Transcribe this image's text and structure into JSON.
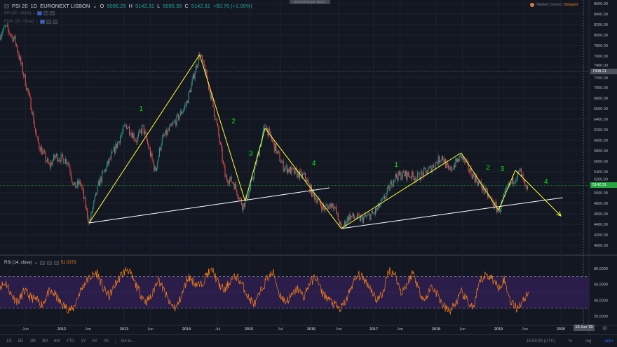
{
  "header": {
    "symbol": "PSI 20",
    "interval": "1D",
    "exchange": "EURONEXT LISBON",
    "open_label": "O",
    "open": "5096.26",
    "high_label": "H",
    "high": "5142.31",
    "low_label": "L",
    "low": "5095.35",
    "close_label": "C",
    "close": "5142.31",
    "change": "+50.76 (+1.00%)",
    "indicators": [
      "MA (50, close)",
      "EMA (20, close)"
    ]
  },
  "exit_fullscreen": "Exit Full Screen (ESC)",
  "market_status": {
    "text": "Market Closed",
    "delay": "Delayed"
  },
  "crosshair_price": "7308.21",
  "last_price": "5142.31",
  "rsi": {
    "label": "RSI (14, close)",
    "value": "51.0373"
  },
  "time_label": "10 Jun '20",
  "bottom_bar": {
    "ranges": [
      "1D",
      "5D",
      "1M",
      "3M",
      "6M",
      "YTD",
      "1Y",
      "5Y",
      "All"
    ],
    "goto": "Go to...",
    "clock": "15:03:09 (UTC)",
    "percent": "%",
    "log": "log",
    "auto": "auto"
  },
  "colors": {
    "bg": "#131722",
    "up": "#26a69a",
    "down": "#ef5350",
    "annotation": "#ffff33",
    "trend": "#ffffff",
    "wave_label": "#00e600",
    "rsi": "#f57f17",
    "rsi_band": "#2a1d4a"
  },
  "chart_data": {
    "type": "line",
    "title": "PSI 20 · 1D · EURONEXT LISBON",
    "price_ticks": [
      "8600.00",
      "8400.00",
      "8200.00",
      "8000.00",
      "7800.00",
      "7600.00",
      "7400.00",
      "7200.00",
      "7000.00",
      "6800.00",
      "6600.00",
      "6400.00",
      "6200.00",
      "6000.00",
      "5800.00",
      "5600.00",
      "5400.00",
      "5200.00",
      "5000.00",
      "4800.00",
      "4600.00",
      "4400.00",
      "4200.00",
      "4000.00"
    ],
    "ylim": [
      4000,
      8600
    ],
    "time_ticks": [
      {
        "label": "Jun",
        "t": 2011.42
      },
      {
        "label": "2012",
        "t": 2012
      },
      {
        "label": "Jun",
        "t": 2012.42
      },
      {
        "label": "2013",
        "t": 2013
      },
      {
        "label": "Jun",
        "t": 2013.42
      },
      {
        "label": "2014",
        "t": 2014
      },
      {
        "label": "Jul",
        "t": 2014.5
      },
      {
        "label": "2015",
        "t": 2015
      },
      {
        "label": "Jul",
        "t": 2015.5
      },
      {
        "label": "2016",
        "t": 2016
      },
      {
        "label": "Jun",
        "t": 2016.44
      },
      {
        "label": "2017",
        "t": 2017
      },
      {
        "label": "Jun",
        "t": 2017.42
      },
      {
        "label": "2018",
        "t": 2018
      },
      {
        "label": "Jun",
        "t": 2018.42
      },
      {
        "label": "2019",
        "t": 2019
      },
      {
        "label": "Jun",
        "t": 2019.42
      },
      {
        "label": "2020",
        "t": 2020
      }
    ],
    "xlim": [
      2011.01,
      2020.45
    ],
    "price_series": [
      [
        2011.01,
        8000
      ],
      [
        2011.1,
        8150
      ],
      [
        2011.25,
        7900
      ],
      [
        2011.4,
        7200
      ],
      [
        2011.52,
        6600
      ],
      [
        2011.6,
        6000
      ],
      [
        2011.8,
        5500
      ],
      [
        2011.9,
        5700
      ],
      [
        2012.1,
        5600
      ],
      [
        2012.2,
        5100
      ],
      [
        2012.3,
        5200
      ],
      [
        2012.44,
        4420
      ],
      [
        2012.6,
        5200
      ],
      [
        2012.8,
        5700
      ],
      [
        2013.03,
        6300
      ],
      [
        2013.2,
        6000
      ],
      [
        2013.3,
        6250
      ],
      [
        2013.5,
        5400
      ],
      [
        2013.6,
        6000
      ],
      [
        2013.85,
        6400
      ],
      [
        2014.0,
        6700
      ],
      [
        2014.21,
        7650
      ],
      [
        2014.3,
        7300
      ],
      [
        2014.4,
        6800
      ],
      [
        2014.5,
        6200
      ],
      [
        2014.62,
        5300
      ],
      [
        2014.75,
        5200
      ],
      [
        2014.9,
        4750
      ],
      [
        2015.0,
        5000
      ],
      [
        2015.26,
        6300
      ],
      [
        2015.4,
        5900
      ],
      [
        2015.55,
        5500
      ],
      [
        2015.7,
        5400
      ],
      [
        2015.9,
        5300
      ],
      [
        2016.01,
        5000
      ],
      [
        2016.2,
        4700
      ],
      [
        2016.35,
        4800
      ],
      [
        2016.48,
        4300
      ],
      [
        2016.6,
        4550
      ],
      [
        2016.8,
        4500
      ],
      [
        2017.0,
        4600
      ],
      [
        2017.15,
        4850
      ],
      [
        2017.33,
        5300
      ],
      [
        2017.5,
        5350
      ],
      [
        2017.7,
        5300
      ],
      [
        2017.9,
        5450
      ],
      [
        2018.1,
        5700
      ],
      [
        2018.2,
        5400
      ],
      [
        2018.4,
        5700
      ],
      [
        2018.55,
        5400
      ],
      [
        2018.8,
        5000
      ],
      [
        2019.0,
        4650
      ],
      [
        2019.15,
        5100
      ],
      [
        2019.27,
        5300
      ],
      [
        2019.35,
        5400
      ],
      [
        2019.45,
        5000
      ],
      [
        2019.48,
        5142
      ]
    ],
    "rsi_series": [
      58,
      62,
      45,
      38,
      52,
      44,
      40,
      35,
      50,
      48,
      36,
      30,
      28,
      48,
      62,
      70,
      75,
      55,
      45,
      60,
      72,
      80,
      65,
      50,
      38,
      45,
      68,
      52,
      35,
      30,
      48,
      70,
      62,
      58,
      72,
      78,
      60,
      52,
      66,
      70,
      58,
      42,
      35,
      52,
      68,
      75,
      48,
      38,
      45,
      55,
      44,
      62,
      70,
      50,
      42,
      35,
      28,
      40,
      60,
      72,
      66,
      56,
      40,
      48,
      78,
      74,
      50,
      60,
      76,
      52,
      40,
      58,
      48,
      32,
      26,
      36,
      50,
      38,
      30,
      64,
      72,
      68,
      56,
      66,
      40,
      30,
      38,
      51.04
    ],
    "rsi_ticks": [
      "80.0000",
      "60.0000",
      "40.0000",
      "20.0000"
    ],
    "rsi_levels": [
      70,
      30
    ],
    "trendlines": [
      {
        "from": [
          2012.44,
          4427
        ],
        "to": [
          2016.29,
          5093
        ]
      },
      {
        "from": [
          2016.48,
          4320
        ],
        "to": [
          2020.03,
          4907
        ]
      }
    ],
    "wave_path": [
      [
        2012.44,
        4427
      ],
      [
        2014.21,
        7627
      ],
      [
        2014.94,
        4840
      ],
      [
        2015.26,
        6227
      ],
      [
        2016.48,
        4320
      ],
      [
        2018.4,
        5760
      ],
      [
        2019.0,
        4667
      ],
      [
        2019.27,
        5427
      ],
      [
        2020.0,
        4560
      ]
    ],
    "wave_labels": [
      {
        "text": "1",
        "at": [
          2013.24,
          6560
        ]
      },
      {
        "text": "2",
        "at": [
          2014.72,
          6320
        ]
      },
      {
        "text": "3",
        "at": [
          2015.0,
          5707
        ]
      },
      {
        "text": "4",
        "at": [
          2016.01,
          5520
        ]
      },
      {
        "text": "1",
        "at": [
          2017.33,
          5493
        ]
      },
      {
        "text": "2",
        "at": [
          2018.8,
          5440
        ]
      },
      {
        "text": "3",
        "at": [
          2019.03,
          5413
        ]
      },
      {
        "text": "4",
        "at": [
          2019.73,
          5173
        ]
      }
    ]
  }
}
